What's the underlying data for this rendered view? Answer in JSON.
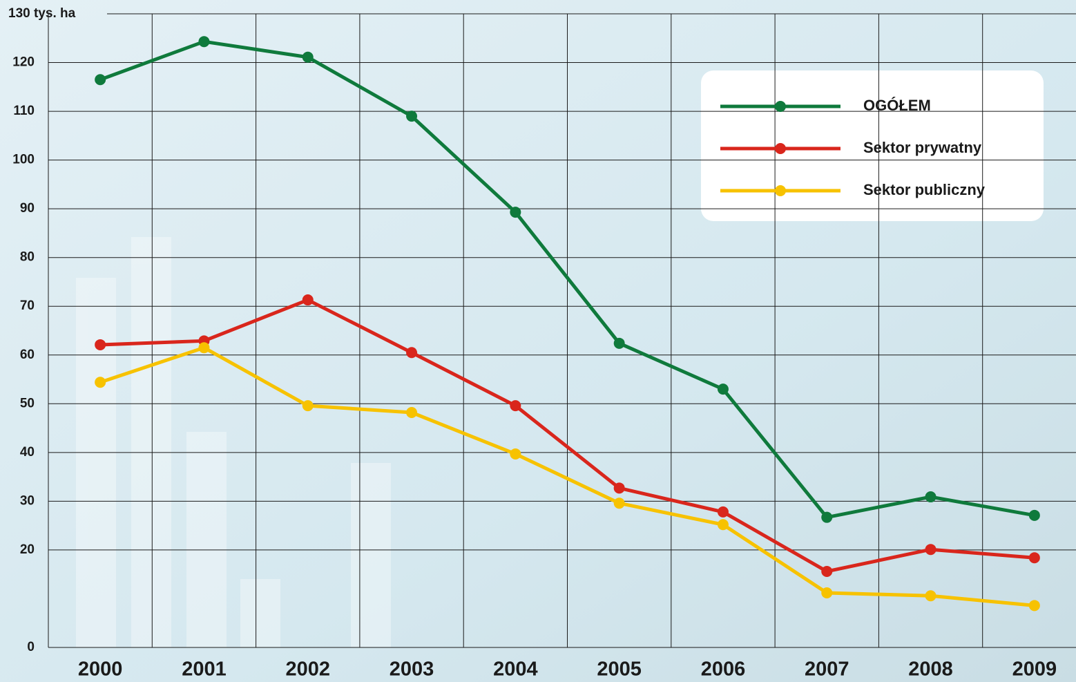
{
  "chart_data": {
    "type": "line",
    "categories": [
      "2000",
      "2001",
      "2002",
      "2003",
      "2004",
      "2005",
      "2006",
      "2007",
      "2008",
      "2009"
    ],
    "series": [
      {
        "name": "OGÓŁEM",
        "color": "#0f7a3c",
        "values": [
          116.5,
          124.3,
          121.1,
          109.0,
          89.3,
          62.4,
          53.0,
          26.7,
          30.9,
          27.1
        ]
      },
      {
        "name": "Sektor prywatny",
        "color": "#d9261c",
        "values": [
          62.1,
          62.9,
          71.3,
          60.5,
          49.6,
          32.7,
          27.8,
          15.6,
          20.1,
          18.4
        ]
      },
      {
        "name": "Sektor publiczny",
        "color": "#f7c200",
        "values": [
          54.4,
          61.5,
          49.6,
          48.2,
          39.7,
          29.6,
          25.2,
          11.2,
          10.6,
          8.6
        ]
      }
    ],
    "ylim": [
      0,
      130
    ],
    "yticks": [
      0,
      20,
      30,
      40,
      50,
      60,
      70,
      80,
      90,
      100,
      110,
      120,
      {
        "value": 130,
        "label": "130 tys. ha"
      }
    ],
    "grid": true
  }
}
